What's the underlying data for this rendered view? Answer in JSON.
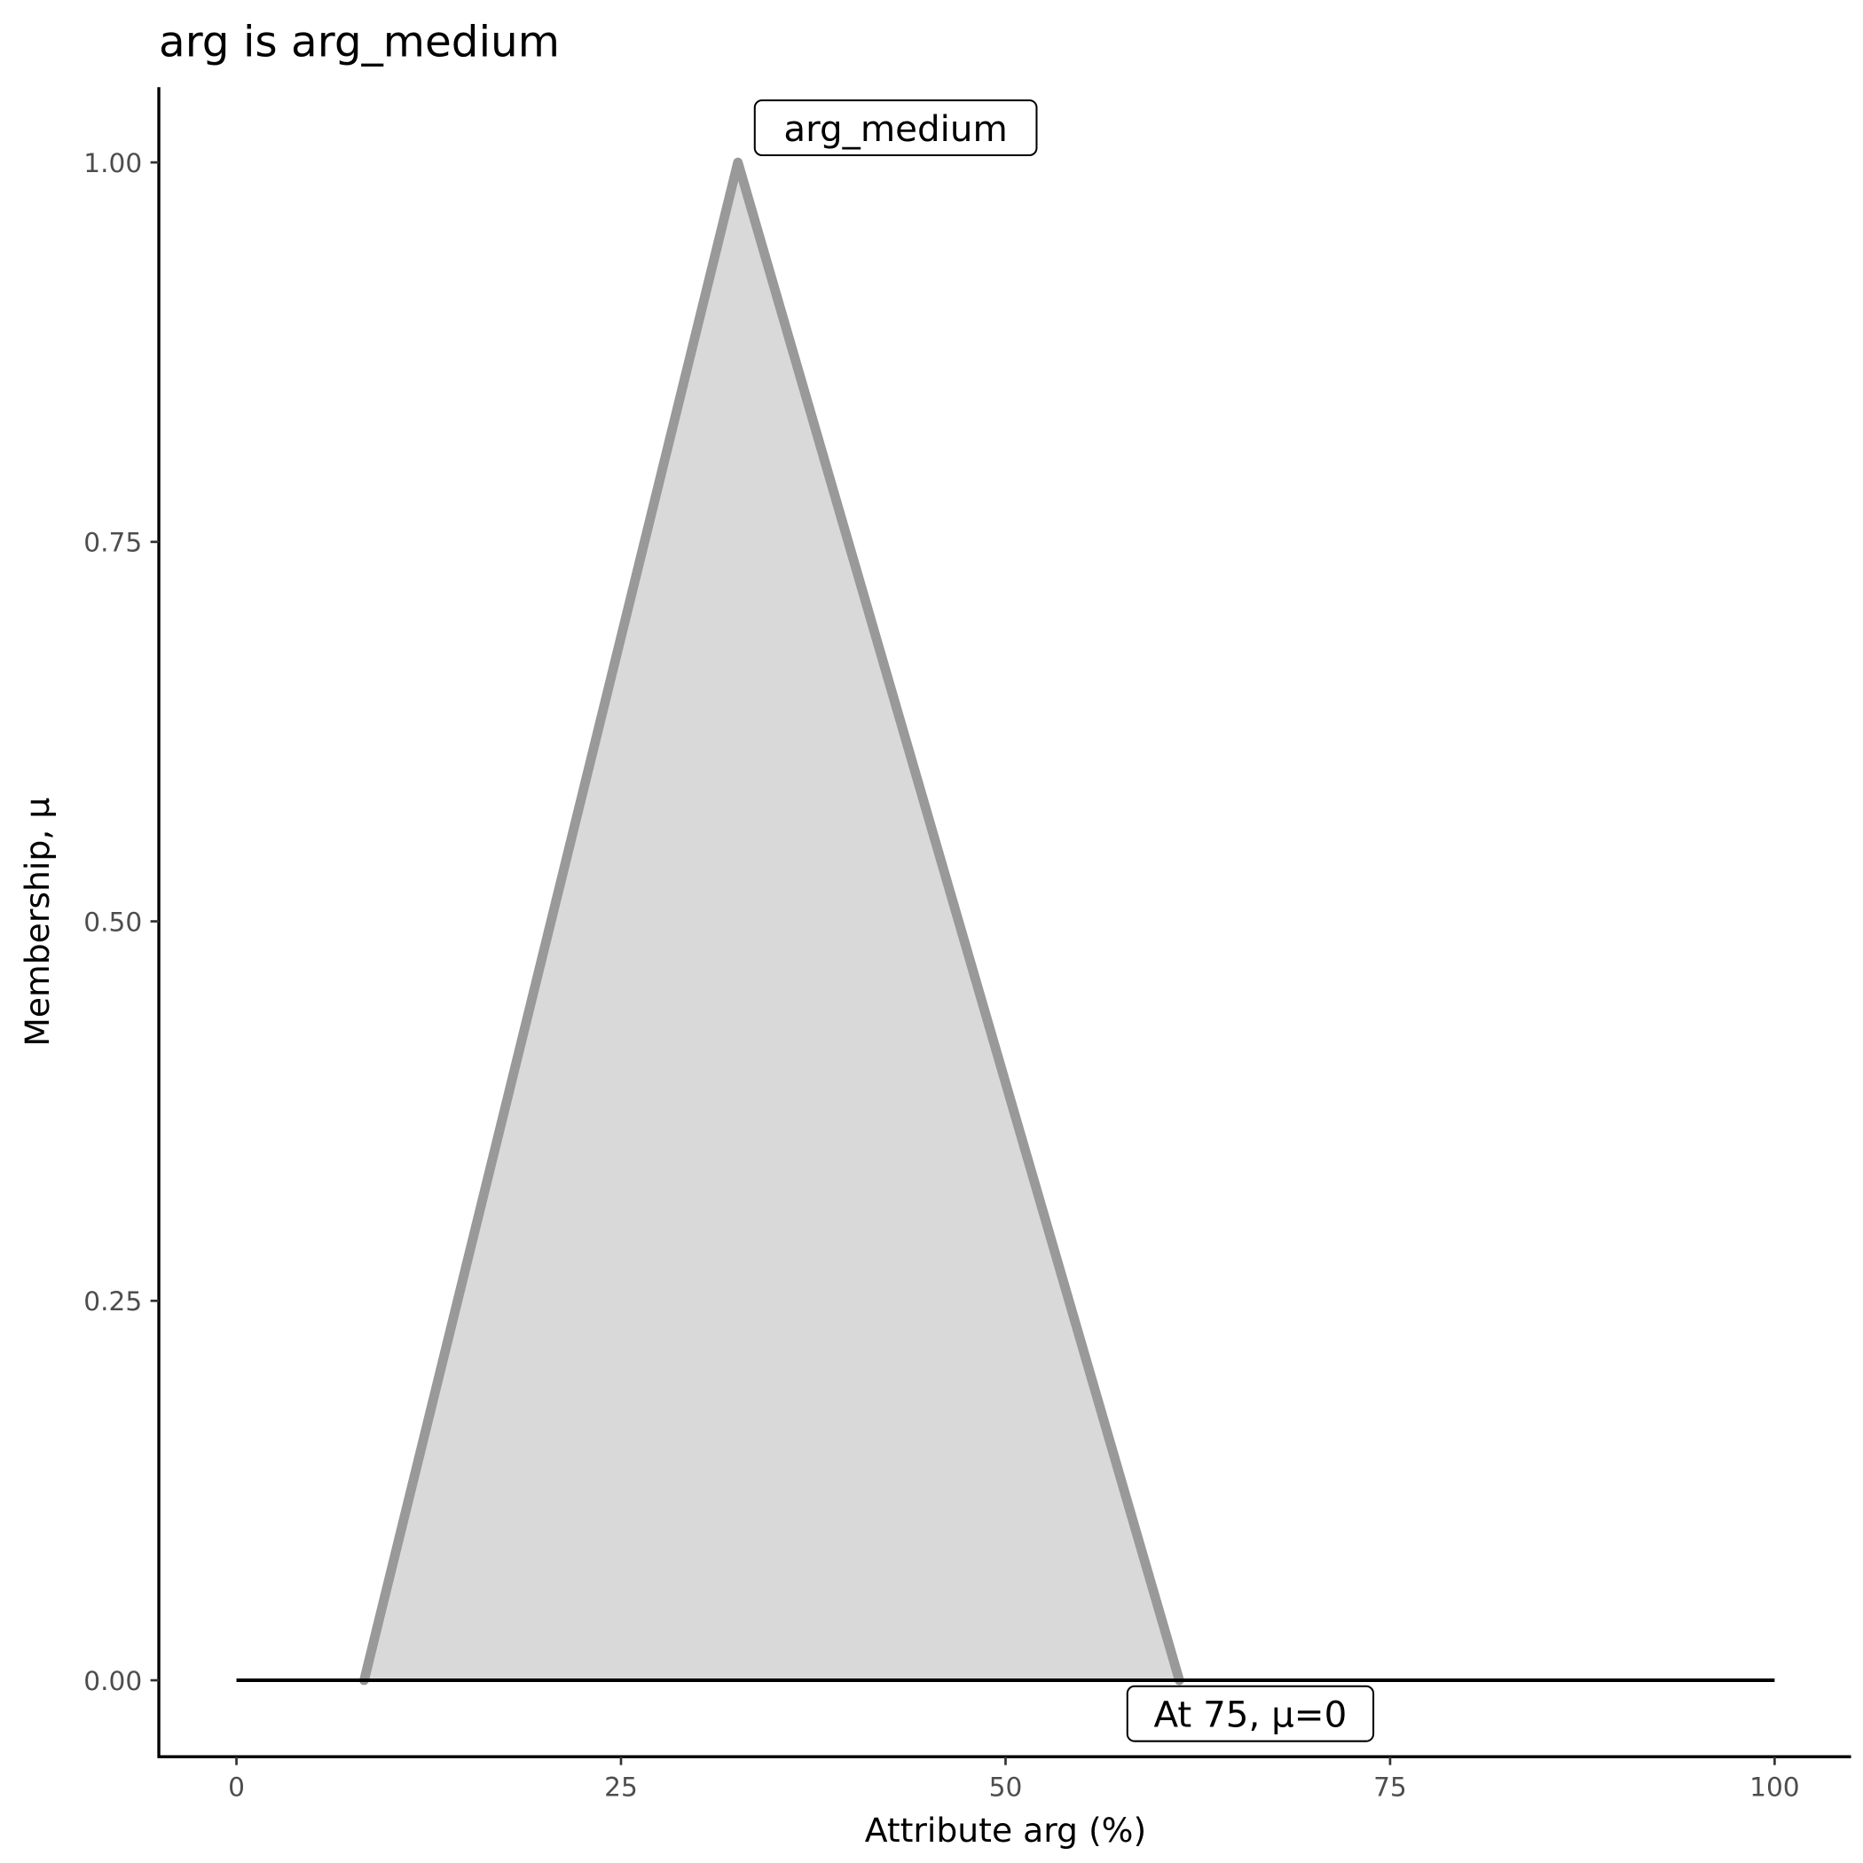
{
  "chart_data": {
    "type": "area",
    "title": "arg is arg_medium",
    "xlabel": "Attribute arg (%)",
    "ylabel": "Membership, μ",
    "xlim": [
      0,
      100
    ],
    "ylim": [
      0,
      1
    ],
    "x_ticks": [
      "0",
      "25",
      "50",
      "75",
      "100"
    ],
    "y_ticks": [
      "0.00",
      "0.25",
      "0.50",
      "0.75",
      "1.00"
    ],
    "grid": false,
    "series": [
      {
        "name": "arg_medium",
        "x": [
          8.3,
          32.6,
          61.3
        ],
        "y": [
          0,
          1,
          0
        ],
        "line_color": "#999999",
        "fill_color": "#d9d9d9"
      }
    ],
    "baseline": {
      "x": [
        0,
        100
      ],
      "y": 0,
      "color": "#000000"
    },
    "annotations": [
      {
        "text": "arg_medium",
        "x": 32.6,
        "y": 1.0
      },
      {
        "text": "At 75, μ=0",
        "x": 75,
        "y": 0
      }
    ]
  }
}
